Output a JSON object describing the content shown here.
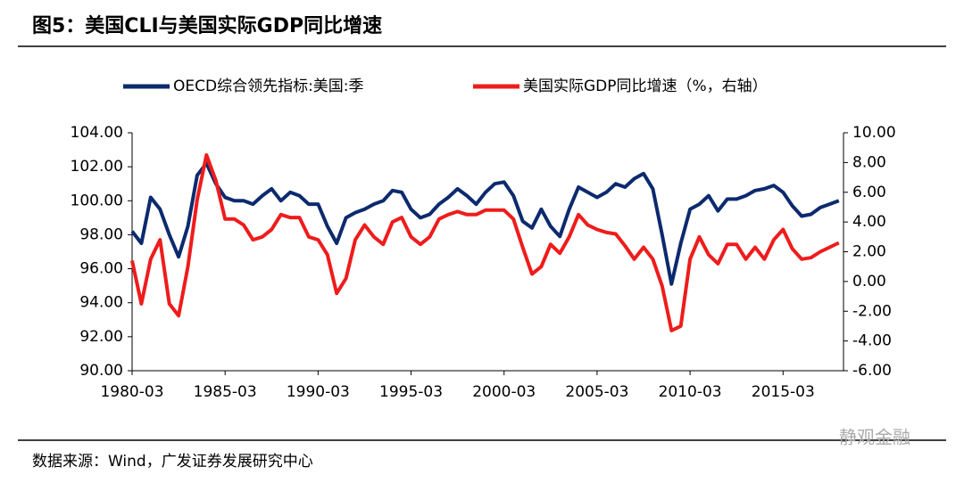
{
  "chart_data": {
    "type": "line",
    "title": "图5：美国CLI与美国实际GDP同比增速",
    "source": "数据来源：Wind，广发证券发展研究中心",
    "watermark": "静观金融",
    "x": [
      "1980-03",
      "1980-09",
      "1981-03",
      "1981-09",
      "1982-03",
      "1982-09",
      "1983-03",
      "1983-09",
      "1984-03",
      "1984-09",
      "1985-03",
      "1985-09",
      "1986-03",
      "1986-09",
      "1987-03",
      "1987-09",
      "1988-03",
      "1988-09",
      "1989-03",
      "1989-09",
      "1990-03",
      "1990-09",
      "1991-03",
      "1991-09",
      "1992-03",
      "1992-09",
      "1993-03",
      "1993-09",
      "1994-03",
      "1994-09",
      "1995-03",
      "1995-09",
      "1996-03",
      "1996-09",
      "1997-03",
      "1997-09",
      "1998-03",
      "1998-09",
      "1999-03",
      "1999-09",
      "2000-03",
      "2000-09",
      "2001-03",
      "2001-09",
      "2002-03",
      "2002-09",
      "2003-03",
      "2003-09",
      "2004-03",
      "2004-09",
      "2005-03",
      "2005-09",
      "2006-03",
      "2006-09",
      "2007-03",
      "2007-09",
      "2008-03",
      "2008-09",
      "2009-03",
      "2009-09",
      "2010-03",
      "2010-09",
      "2011-03",
      "2011-09",
      "2012-03",
      "2012-09",
      "2013-03",
      "2013-09",
      "2014-03",
      "2014-09",
      "2015-03",
      "2015-09",
      "2016-03",
      "2016-09",
      "2017-03",
      "2017-09",
      "2018-03"
    ],
    "series": [
      {
        "name": "OECD综合领先指标:美国:季",
        "color": "#0c2a6e",
        "axis": "y",
        "values": [
          98.2,
          97.5,
          100.2,
          99.5,
          98.0,
          96.7,
          98.5,
          101.5,
          102.2,
          101.0,
          100.2,
          100.0,
          100.0,
          99.8,
          100.3,
          100.7,
          100.0,
          100.5,
          100.3,
          99.8,
          99.8,
          98.5,
          97.5,
          99.0,
          99.3,
          99.5,
          99.8,
          100.0,
          100.6,
          100.5,
          99.5,
          99.0,
          99.2,
          99.8,
          100.2,
          100.7,
          100.3,
          99.8,
          100.5,
          101.0,
          101.1,
          100.3,
          98.8,
          98.4,
          99.5,
          98.5,
          97.9,
          99.5,
          100.8,
          100.5,
          100.2,
          100.5,
          101.0,
          100.8,
          101.3,
          101.6,
          100.7,
          98.0,
          95.1,
          97.5,
          99.5,
          99.8,
          100.3,
          99.4,
          100.1,
          100.1,
          100.3,
          100.6,
          100.7,
          100.9,
          100.5,
          99.7,
          99.1,
          99.2,
          99.6,
          99.8,
          100.0
        ]
      },
      {
        "name": "美国实际GDP同比增速（%，右轴）",
        "color": "#ee1c1c",
        "axis": "y2",
        "values": [
          1.4,
          -1.5,
          1.5,
          2.8,
          -1.5,
          -2.3,
          1.0,
          5.5,
          8.5,
          6.8,
          4.2,
          4.2,
          3.8,
          2.8,
          3.0,
          3.5,
          4.5,
          4.3,
          4.3,
          3.0,
          2.8,
          1.8,
          -0.8,
          0.2,
          2.8,
          3.8,
          3.0,
          2.5,
          4.0,
          4.3,
          3.0,
          2.5,
          3.0,
          4.2,
          4.5,
          4.7,
          4.5,
          4.5,
          4.8,
          4.8,
          4.8,
          4.2,
          2.3,
          0.5,
          1.0,
          2.5,
          1.9,
          3.0,
          4.5,
          3.8,
          3.5,
          3.3,
          3.2,
          2.4,
          1.5,
          2.3,
          1.5,
          -0.3,
          -3.3,
          -3.0,
          1.5,
          3.0,
          1.8,
          1.2,
          2.5,
          2.5,
          1.5,
          2.3,
          1.5,
          2.8,
          3.5,
          2.2,
          1.5,
          1.6,
          2.0,
          2.3,
          2.6
        ]
      }
    ],
    "xlim": [
      "1980-03",
      "2018-06"
    ],
    "xticks": [
      "1980-03",
      "1985-03",
      "1990-03",
      "1995-03",
      "2000-03",
      "2005-03",
      "2010-03",
      "2015-03"
    ],
    "ylim": [
      90,
      104
    ],
    "yticks": [
      {
        "value": 90,
        "label": "90.00"
      },
      {
        "value": 92,
        "label": "92.00"
      },
      {
        "value": 94,
        "label": "94.00"
      },
      {
        "value": 96,
        "label": "96.00"
      },
      {
        "value": 98,
        "label": "98.00"
      },
      {
        "value": 100,
        "label": "100.00"
      },
      {
        "value": 102,
        "label": "102.00"
      },
      {
        "value": 104,
        "label": "104.00"
      }
    ],
    "y2lim": [
      -6,
      10
    ],
    "y2ticks": [
      {
        "value": -6,
        "label": "-6.00"
      },
      {
        "value": -4,
        "label": "-4.00"
      },
      {
        "value": -2,
        "label": "-2.00"
      },
      {
        "value": 0,
        "label": "0.00"
      },
      {
        "value": 2,
        "label": "2.00"
      },
      {
        "value": 4,
        "label": "4.00"
      },
      {
        "value": 6,
        "label": "6.00"
      },
      {
        "value": 8,
        "label": "8.00"
      },
      {
        "value": 10,
        "label": "10.00"
      }
    ],
    "grid": false,
    "legend": "top"
  }
}
